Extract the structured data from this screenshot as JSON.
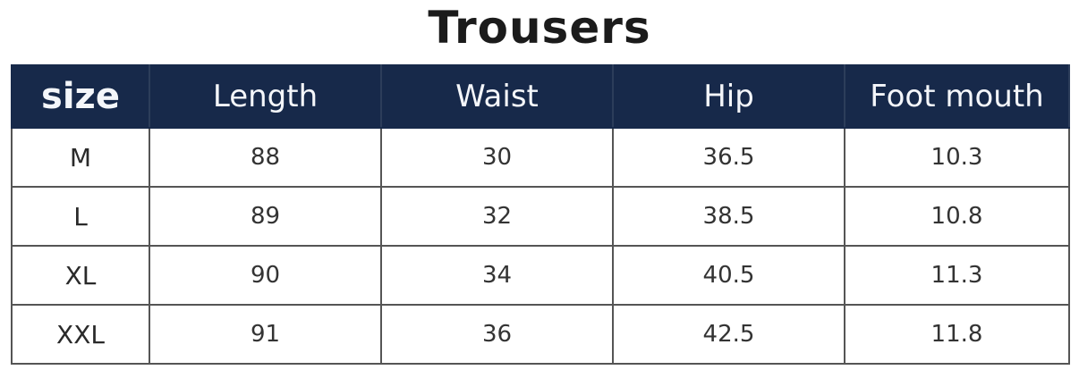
{
  "title": "Trousers",
  "colors": {
    "header_bg": "#17294a",
    "header_text": "#f4f6fa"
  },
  "headers": [
    "size",
    "Length",
    "Waist",
    "Hip",
    "Foot mouth"
  ],
  "rows": [
    [
      "M",
      "88",
      "30",
      "36.5",
      "10.3"
    ],
    [
      "L",
      "89",
      "32",
      "38.5",
      "10.8"
    ],
    [
      "XL",
      "90",
      "34",
      "40.5",
      "11.3"
    ],
    [
      "XXL",
      "91",
      "36",
      "42.5",
      "11.8"
    ]
  ]
}
